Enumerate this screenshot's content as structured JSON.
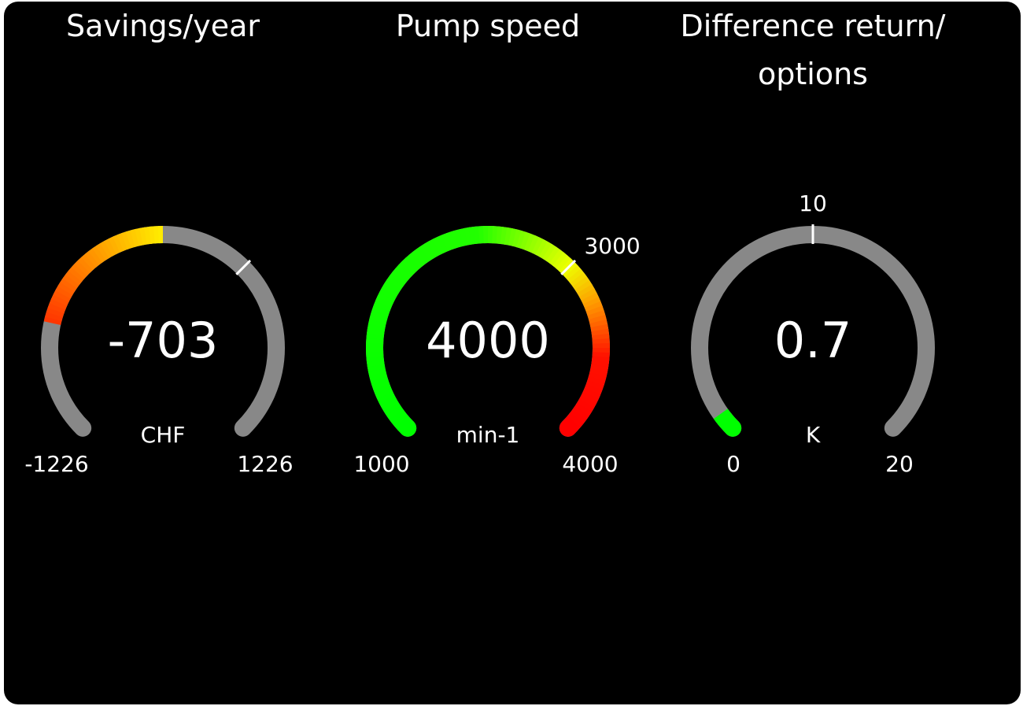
{
  "gauges": [
    {
      "title_lines": [
        "Savings/year"
      ],
      "value": -703,
      "value_text": "-703",
      "unit": "CHF",
      "min": -1226,
      "max": 1226,
      "min_text": "-1226",
      "max_text": "1226",
      "fill_from": 0,
      "fill_stops": [
        [
          -1226,
          "#ff2a00"
        ],
        [
          -703,
          "#ff3300"
        ],
        [
          0,
          "#ffee00"
        ]
      ],
      "tick": 408.67,
      "tick_label": ""
    },
    {
      "title_lines": [
        "Pump speed"
      ],
      "value": 4000,
      "value_text": "4000",
      "unit": "min-1",
      "min": 1000,
      "max": 4000,
      "min_text": "1000",
      "max_text": "4000",
      "fill_from": 1000,
      "fill_stops": [
        [
          1000,
          "#00ff00"
        ],
        [
          2450,
          "#22ff00"
        ],
        [
          3000,
          "#eeff00"
        ],
        [
          3250,
          "#ff9900"
        ],
        [
          3550,
          "#ff1100"
        ],
        [
          4000,
          "#ff0000"
        ]
      ],
      "tick": 3000,
      "tick_label": "3000"
    },
    {
      "title_lines": [
        "Difference return/",
        "options"
      ],
      "value": 0.7,
      "value_text": "0.7",
      "unit": "K",
      "min": 0,
      "max": 20,
      "min_text": "0",
      "max_text": "20",
      "fill_from": 0,
      "fill_stops": [
        [
          0,
          "#00ff00"
        ],
        [
          20,
          "#00ff00"
        ]
      ],
      "tick": 10,
      "tick_label": "10"
    }
  ],
  "colors": {
    "track": "#888888",
    "background": "#000000",
    "text": "#ffffff",
    "tick": "#ffffff"
  }
}
